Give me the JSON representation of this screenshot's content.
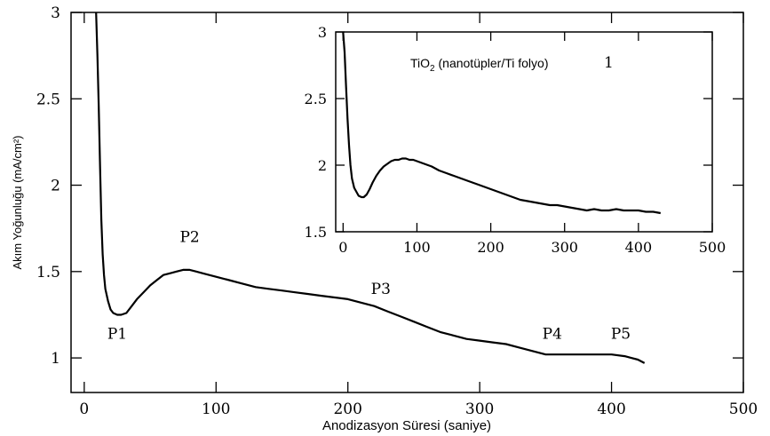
{
  "chart_data": [
    {
      "id": "main",
      "type": "line",
      "xlabel": "Anodizasyon Süresi (saniye)",
      "ylabel": "Akım Yoğunluğu (mA/cm²)",
      "xlim": [
        -10,
        500
      ],
      "ylim": [
        0.8,
        3.0
      ],
      "x_ticks": [
        0,
        100,
        200,
        300,
        400,
        500
      ],
      "y_ticks": [
        1,
        1.5,
        2,
        2.5,
        3
      ],
      "x_tick_labels": [
        "0",
        "100",
        "200",
        "300",
        "400",
        "500"
      ],
      "y_tick_labels": [
        "1",
        "1.5",
        "2",
        "2.5",
        "3"
      ],
      "series": [
        {
          "x": [
            9,
            10,
            11,
            12,
            13,
            14,
            15,
            16,
            18,
            20,
            22,
            25,
            28,
            32,
            36,
            40,
            45,
            50,
            55,
            60,
            65,
            70,
            75,
            80,
            85,
            90,
            100,
            110,
            120,
            130,
            140,
            150,
            160,
            170,
            180,
            190,
            200,
            210,
            220,
            230,
            240,
            250,
            260,
            270,
            280,
            290,
            300,
            310,
            320,
            330,
            340,
            350,
            360,
            370,
            380,
            390,
            400,
            410,
            415,
            420,
            425
          ],
          "y": [
            3.0,
            2.75,
            2.45,
            2.1,
            1.8,
            1.6,
            1.48,
            1.4,
            1.33,
            1.28,
            1.26,
            1.25,
            1.25,
            1.26,
            1.3,
            1.34,
            1.38,
            1.42,
            1.45,
            1.48,
            1.49,
            1.5,
            1.51,
            1.51,
            1.5,
            1.49,
            1.47,
            1.45,
            1.43,
            1.41,
            1.4,
            1.39,
            1.38,
            1.37,
            1.36,
            1.35,
            1.34,
            1.32,
            1.3,
            1.27,
            1.24,
            1.21,
            1.18,
            1.15,
            1.13,
            1.11,
            1.1,
            1.09,
            1.08,
            1.06,
            1.04,
            1.02,
            1.02,
            1.02,
            1.02,
            1.02,
            1.02,
            1.01,
            1.0,
            0.99,
            0.97
          ]
        }
      ],
      "annotations": [
        {
          "text": "P1",
          "x": 25,
          "y": 1.11
        },
        {
          "text": "P2",
          "x": 80,
          "y": 1.67
        },
        {
          "text": "P3",
          "x": 225,
          "y": 1.37
        },
        {
          "text": "P4",
          "x": 355,
          "y": 1.11
        },
        {
          "text": "P5",
          "x": 407,
          "y": 1.11
        }
      ]
    },
    {
      "id": "inset",
      "type": "line",
      "xlim": [
        -10,
        500
      ],
      "ylim": [
        1.5,
        3.0
      ],
      "x_ticks": [
        0,
        100,
        200,
        300,
        400,
        500
      ],
      "y_ticks": [
        1.5,
        2,
        2.5,
        3
      ],
      "x_tick_labels": [
        "0",
        "100",
        "200",
        "300",
        "400",
        "500"
      ],
      "y_tick_labels": [
        "1.5",
        "2",
        "2.5",
        "3"
      ],
      "series": [
        {
          "x": [
            0,
            2,
            4,
            6,
            8,
            10,
            12,
            15,
            18,
            21,
            25,
            28,
            32,
            36,
            40,
            45,
            50,
            55,
            60,
            65,
            70,
            75,
            80,
            85,
            90,
            95,
            100,
            110,
            120,
            130,
            140,
            150,
            160,
            170,
            180,
            190,
            200,
            210,
            220,
            230,
            240,
            250,
            260,
            270,
            280,
            290,
            300,
            310,
            320,
            330,
            340,
            350,
            360,
            370,
            380,
            390,
            400,
            410,
            420,
            430
          ],
          "y": [
            3.0,
            2.85,
            2.6,
            2.35,
            2.15,
            2.0,
            1.9,
            1.83,
            1.8,
            1.77,
            1.76,
            1.76,
            1.78,
            1.82,
            1.87,
            1.92,
            1.96,
            1.99,
            2.01,
            2.03,
            2.04,
            2.04,
            2.05,
            2.05,
            2.04,
            2.04,
            2.03,
            2.01,
            1.99,
            1.96,
            1.94,
            1.92,
            1.9,
            1.88,
            1.86,
            1.84,
            1.82,
            1.8,
            1.78,
            1.76,
            1.74,
            1.73,
            1.72,
            1.71,
            1.7,
            1.7,
            1.69,
            1.68,
            1.67,
            1.66,
            1.67,
            1.66,
            1.66,
            1.67,
            1.66,
            1.66,
            1.66,
            1.65,
            1.65,
            1.64
          ]
        }
      ]
    }
  ],
  "inset_title": {
    "pre": "TiO",
    "sub": "2",
    "post": " (nanotüpler/Ti folyo)",
    "number": "1"
  }
}
